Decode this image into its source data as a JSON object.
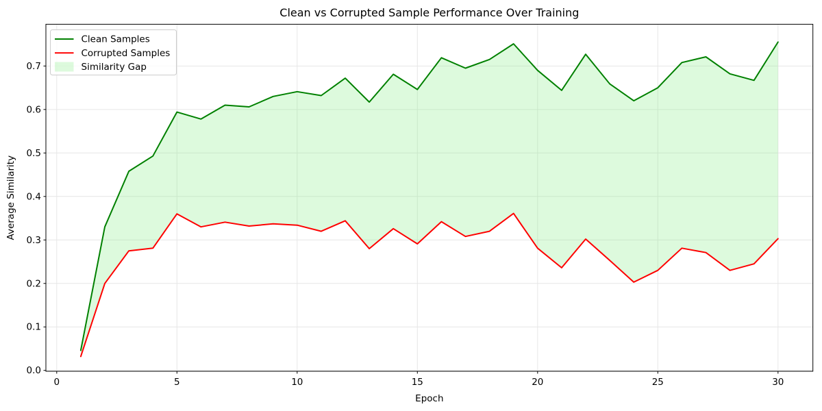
{
  "chart_data": {
    "type": "line",
    "title": "Clean vs Corrupted Sample Performance Over Training",
    "xlabel": "Epoch",
    "ylabel": "Average Similarity",
    "x": [
      1,
      2,
      3,
      4,
      5,
      6,
      7,
      8,
      9,
      10,
      11,
      12,
      13,
      14,
      15,
      16,
      17,
      18,
      19,
      20,
      21,
      22,
      23,
      24,
      25,
      26,
      27,
      28,
      29,
      30
    ],
    "series": [
      {
        "name": "Clean Samples",
        "color": "#008000",
        "values": [
          0.046,
          0.33,
          0.458,
          0.493,
          0.594,
          0.578,
          0.61,
          0.606,
          0.63,
          0.641,
          0.632,
          0.672,
          0.617,
          0.681,
          0.646,
          0.719,
          0.695,
          0.715,
          0.751,
          0.69,
          0.644,
          0.727,
          0.659,
          0.62,
          0.65,
          0.708,
          0.721,
          0.682,
          0.667,
          0.755
        ]
      },
      {
        "name": "Corrupted Samples",
        "color": "#ff0000",
        "values": [
          0.032,
          0.2,
          0.275,
          0.281,
          0.36,
          0.33,
          0.341,
          0.332,
          0.337,
          0.334,
          0.32,
          0.344,
          0.28,
          0.326,
          0.291,
          0.342,
          0.308,
          0.32,
          0.361,
          0.281,
          0.236,
          0.302,
          0.253,
          0.203,
          0.23,
          0.281,
          0.271,
          0.23,
          0.245,
          0.303
        ]
      }
    ],
    "fill_between": {
      "label": "Similarity Gap",
      "upper_series": "Clean Samples",
      "lower_series": "Corrupted Samples",
      "color": "#90ee90",
      "opacity": 0.3
    },
    "legend": {
      "position": "upper-left",
      "entries": [
        {
          "label": "Clean Samples",
          "type": "line",
          "color": "#008000"
        },
        {
          "label": "Corrupted Samples",
          "type": "line",
          "color": "#ff0000"
        },
        {
          "label": "Similarity Gap",
          "type": "patch",
          "color": "#90ee90",
          "opacity": 0.3
        }
      ]
    },
    "xlim": [
      -0.45,
      31.45
    ],
    "ylim": [
      -0.002,
      0.796
    ],
    "xticks": [
      0,
      5,
      10,
      15,
      20,
      25,
      30
    ],
    "xtick_labels": [
      "0",
      "5",
      "10",
      "15",
      "20",
      "25",
      "30"
    ],
    "yticks": [
      0.0,
      0.1,
      0.2,
      0.3,
      0.4,
      0.5,
      0.6,
      0.7
    ],
    "ytick_labels": [
      "0.0",
      "0.1",
      "0.2",
      "0.3",
      "0.4",
      "0.5",
      "0.6",
      "0.7"
    ],
    "grid": true,
    "grid_color": "#e6e6e6",
    "spine_color": "#000000",
    "background": "#ffffff",
    "line_width": 2
  }
}
